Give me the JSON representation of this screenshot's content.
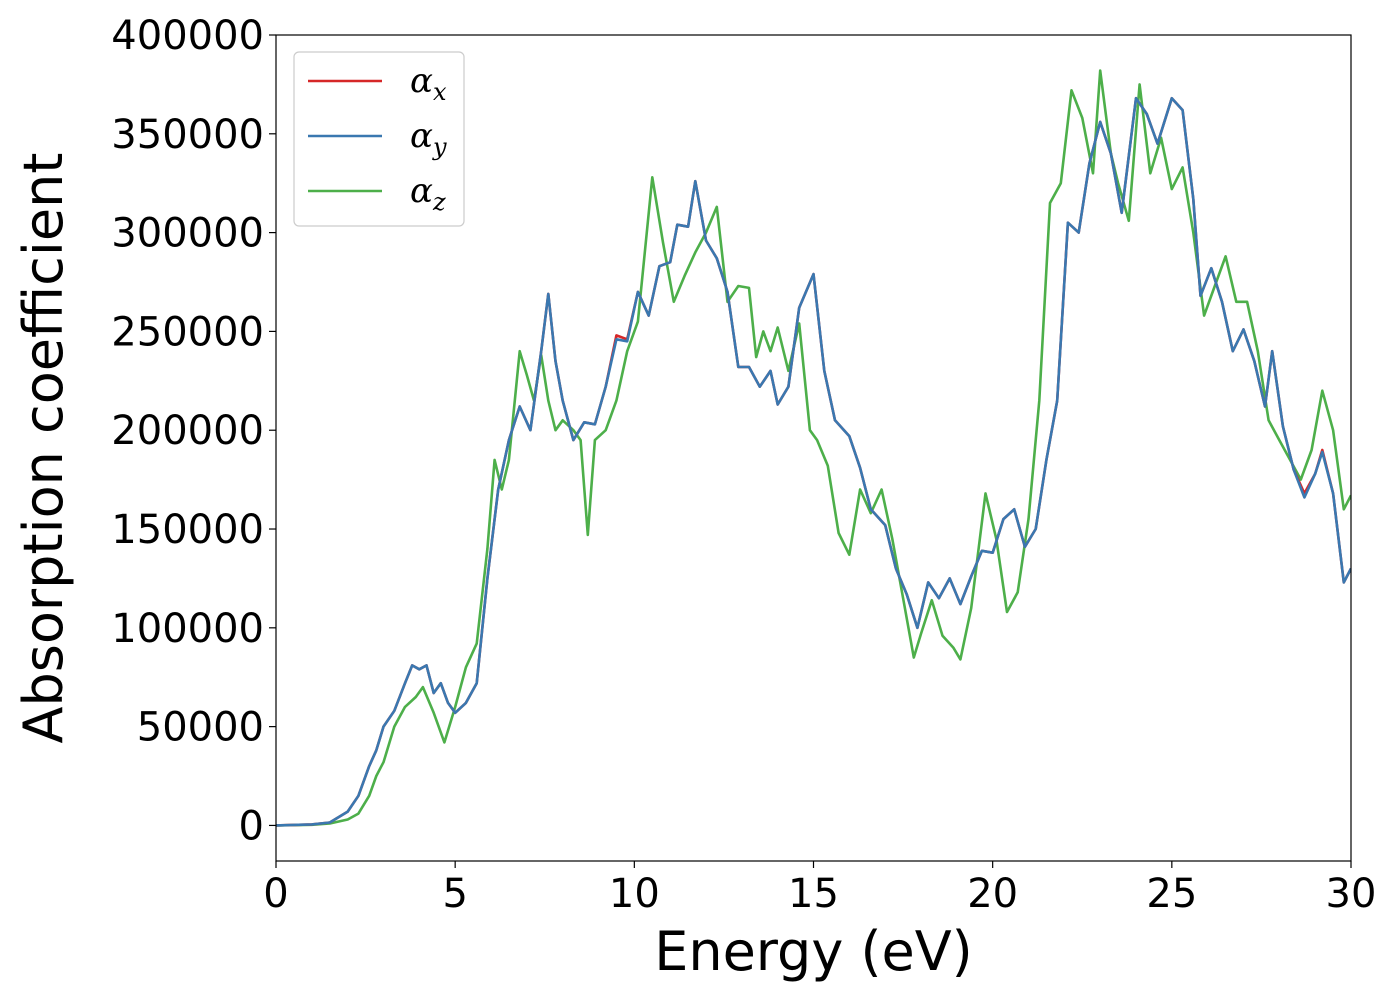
{
  "chart_data": {
    "type": "line",
    "xlabel": "Energy (eV)",
    "ylabel": "Absorption coefficient",
    "xlim": [
      0,
      30
    ],
    "ylim": [
      -18000,
      400000
    ],
    "xticks": [
      0,
      5,
      10,
      15,
      20,
      25,
      30
    ],
    "xtick_labels": [
      "0",
      "5",
      "10",
      "15",
      "20",
      "25",
      "30"
    ],
    "yticks": [
      0,
      50000,
      100000,
      150000,
      200000,
      250000,
      300000,
      350000,
      400000
    ],
    "ytick_labels": [
      "0",
      "50000",
      "100000",
      "150000",
      "200000",
      "250000",
      "300000",
      "350000",
      "400000"
    ],
    "grid": false,
    "legend_position": "top-left",
    "series": [
      {
        "name": "αx",
        "symbol": "α",
        "subscript": "x",
        "color": "#d62728",
        "x": [
          0,
          1,
          1.5,
          2,
          2.3,
          2.6,
          2.8,
          3.0,
          3.3,
          3.6,
          3.8,
          4.0,
          4.2,
          4.4,
          4.6,
          4.8,
          5.0,
          5.3,
          5.6,
          5.9,
          6.2,
          6.5,
          6.8,
          7.1,
          7.4,
          7.6,
          7.8,
          8.0,
          8.3,
          8.6,
          8.9,
          9.2,
          9.5,
          9.8,
          10.1,
          10.4,
          10.7,
          11.0,
          11.2,
          11.5,
          11.7,
          12.0,
          12.3,
          12.6,
          12.9,
          13.2,
          13.5,
          13.8,
          14.0,
          14.3,
          14.6,
          15.0,
          15.3,
          15.6,
          16.0,
          16.3,
          16.6,
          17.0,
          17.3,
          17.6,
          17.9,
          18.2,
          18.5,
          18.8,
          19.1,
          19.4,
          19.7,
          20.0,
          20.3,
          20.6,
          20.9,
          21.2,
          21.5,
          21.8,
          22.1,
          22.4,
          22.7,
          23.0,
          23.3,
          23.6,
          24.0,
          24.3,
          24.6,
          25.0,
          25.3,
          25.6,
          25.8,
          26.1,
          26.4,
          26.7,
          27.0,
          27.3,
          27.6,
          27.8,
          28.1,
          28.4,
          28.7,
          29.0,
          29.2,
          29.5,
          29.8,
          30.0
        ],
        "values": [
          0,
          500,
          1500,
          7000,
          15000,
          30000,
          38000,
          50000,
          58000,
          72000,
          81000,
          79000,
          81000,
          67000,
          72000,
          62000,
          57000,
          62000,
          72000,
          125000,
          170000,
          195000,
          212000,
          200000,
          240000,
          269000,
          235000,
          215000,
          195000,
          204000,
          203000,
          222000,
          248000,
          246000,
          270000,
          258000,
          283000,
          285000,
          304000,
          303000,
          326000,
          296000,
          287000,
          270000,
          232000,
          232000,
          222000,
          230000,
          213000,
          222000,
          262000,
          279000,
          230000,
          205000,
          197000,
          181000,
          160000,
          152000,
          130000,
          117000,
          100000,
          123000,
          115000,
          125000,
          112000,
          126000,
          139000,
          138000,
          155000,
          160000,
          141000,
          150000,
          185000,
          215000,
          305000,
          300000,
          335000,
          356000,
          340000,
          310000,
          368000,
          360000,
          345000,
          368000,
          362000,
          317000,
          268000,
          282000,
          265000,
          240000,
          251000,
          235000,
          212000,
          240000,
          202000,
          180000,
          168000,
          178000,
          190000,
          168000,
          123000,
          130000
        ]
      },
      {
        "name": "αy",
        "symbol": "α",
        "subscript": "y",
        "color": "#3a78b0",
        "x": [
          0,
          1,
          1.5,
          2,
          2.3,
          2.6,
          2.8,
          3.0,
          3.3,
          3.6,
          3.8,
          4.0,
          4.2,
          4.4,
          4.6,
          4.8,
          5.0,
          5.3,
          5.6,
          5.9,
          6.2,
          6.5,
          6.8,
          7.1,
          7.4,
          7.6,
          7.8,
          8.0,
          8.3,
          8.6,
          8.9,
          9.2,
          9.5,
          9.8,
          10.1,
          10.4,
          10.7,
          11.0,
          11.2,
          11.5,
          11.7,
          12.0,
          12.3,
          12.6,
          12.9,
          13.2,
          13.5,
          13.8,
          14.0,
          14.3,
          14.6,
          15.0,
          15.3,
          15.6,
          16.0,
          16.3,
          16.6,
          17.0,
          17.3,
          17.6,
          17.9,
          18.2,
          18.5,
          18.8,
          19.1,
          19.4,
          19.7,
          20.0,
          20.3,
          20.6,
          20.9,
          21.2,
          21.5,
          21.8,
          22.1,
          22.4,
          22.7,
          23.0,
          23.3,
          23.6,
          24.0,
          24.3,
          24.6,
          25.0,
          25.3,
          25.6,
          25.8,
          26.1,
          26.4,
          26.7,
          27.0,
          27.3,
          27.6,
          27.8,
          28.1,
          28.4,
          28.7,
          29.0,
          29.2,
          29.5,
          29.8,
          30.0
        ],
        "values": [
          0,
          500,
          1500,
          7000,
          15000,
          30000,
          38000,
          50000,
          58000,
          72000,
          81000,
          79000,
          81000,
          67000,
          72000,
          62000,
          57000,
          62000,
          72000,
          125000,
          170000,
          195000,
          212000,
          200000,
          240000,
          269000,
          235000,
          215000,
          195000,
          204000,
          203000,
          222000,
          246000,
          245000,
          270000,
          258000,
          283000,
          285000,
          304000,
          303000,
          326000,
          296000,
          287000,
          270000,
          232000,
          232000,
          222000,
          230000,
          213000,
          222000,
          262000,
          279000,
          230000,
          205000,
          197000,
          181000,
          160000,
          152000,
          130000,
          117000,
          100000,
          123000,
          115000,
          125000,
          112000,
          126000,
          139000,
          138000,
          155000,
          160000,
          141000,
          150000,
          185000,
          215000,
          305000,
          300000,
          335000,
          356000,
          340000,
          310000,
          368000,
          360000,
          345000,
          368000,
          362000,
          317000,
          268000,
          282000,
          265000,
          240000,
          251000,
          235000,
          212000,
          240000,
          202000,
          180000,
          166000,
          178000,
          189000,
          168000,
          123000,
          130000
        ]
      },
      {
        "name": "αz",
        "symbol": "α",
        "subscript": "z",
        "color": "#4daf4a",
        "x": [
          0,
          1,
          1.5,
          2,
          2.3,
          2.6,
          2.8,
          3.0,
          3.3,
          3.6,
          3.9,
          4.1,
          4.4,
          4.7,
          5.0,
          5.3,
          5.6,
          5.9,
          6.1,
          6.3,
          6.5,
          6.8,
          7.0,
          7.2,
          7.4,
          7.6,
          7.8,
          8.0,
          8.3,
          8.5,
          8.7,
          8.9,
          9.2,
          9.5,
          9.8,
          10.1,
          10.5,
          10.8,
          11.1,
          11.4,
          11.7,
          12.0,
          12.3,
          12.6,
          12.9,
          13.2,
          13.4,
          13.6,
          13.8,
          14.0,
          14.3,
          14.6,
          14.9,
          15.1,
          15.4,
          15.7,
          16.0,
          16.3,
          16.6,
          16.9,
          17.2,
          17.5,
          17.8,
          18.0,
          18.3,
          18.6,
          18.9,
          19.1,
          19.4,
          19.8,
          20.1,
          20.4,
          20.7,
          21.0,
          21.3,
          21.6,
          21.9,
          22.2,
          22.5,
          22.8,
          23.0,
          23.3,
          23.5,
          23.8,
          24.1,
          24.4,
          24.7,
          25.0,
          25.3,
          25.6,
          25.9,
          26.2,
          26.5,
          26.8,
          27.1,
          27.4,
          27.7,
          28.0,
          28.3,
          28.6,
          28.9,
          29.2,
          29.5,
          29.8,
          30.0
        ],
        "values": [
          0,
          300,
          1000,
          3000,
          6000,
          15000,
          25000,
          32000,
          50000,
          60000,
          65000,
          70000,
          57000,
          42000,
          60000,
          80000,
          92000,
          140000,
          185000,
          170000,
          185000,
          240000,
          228000,
          215000,
          238000,
          215000,
          200000,
          205000,
          200000,
          195000,
          147000,
          195000,
          200000,
          215000,
          240000,
          255000,
          328000,
          295000,
          265000,
          278000,
          290000,
          300000,
          313000,
          265000,
          273000,
          272000,
          237000,
          250000,
          240000,
          252000,
          230000,
          254000,
          200000,
          195000,
          182000,
          148000,
          137000,
          170000,
          158000,
          170000,
          145000,
          115000,
          85000,
          97000,
          114000,
          96000,
          90000,
          84000,
          110000,
          168000,
          145000,
          108000,
          118000,
          155000,
          215000,
          315000,
          325000,
          372000,
          358000,
          330000,
          382000,
          340000,
          325000,
          306000,
          375000,
          330000,
          348000,
          322000,
          333000,
          300000,
          258000,
          273000,
          288000,
          265000,
          265000,
          240000,
          205000,
          195000,
          185000,
          175000,
          190000,
          220000,
          200000,
          160000,
          167000
        ]
      }
    ]
  }
}
